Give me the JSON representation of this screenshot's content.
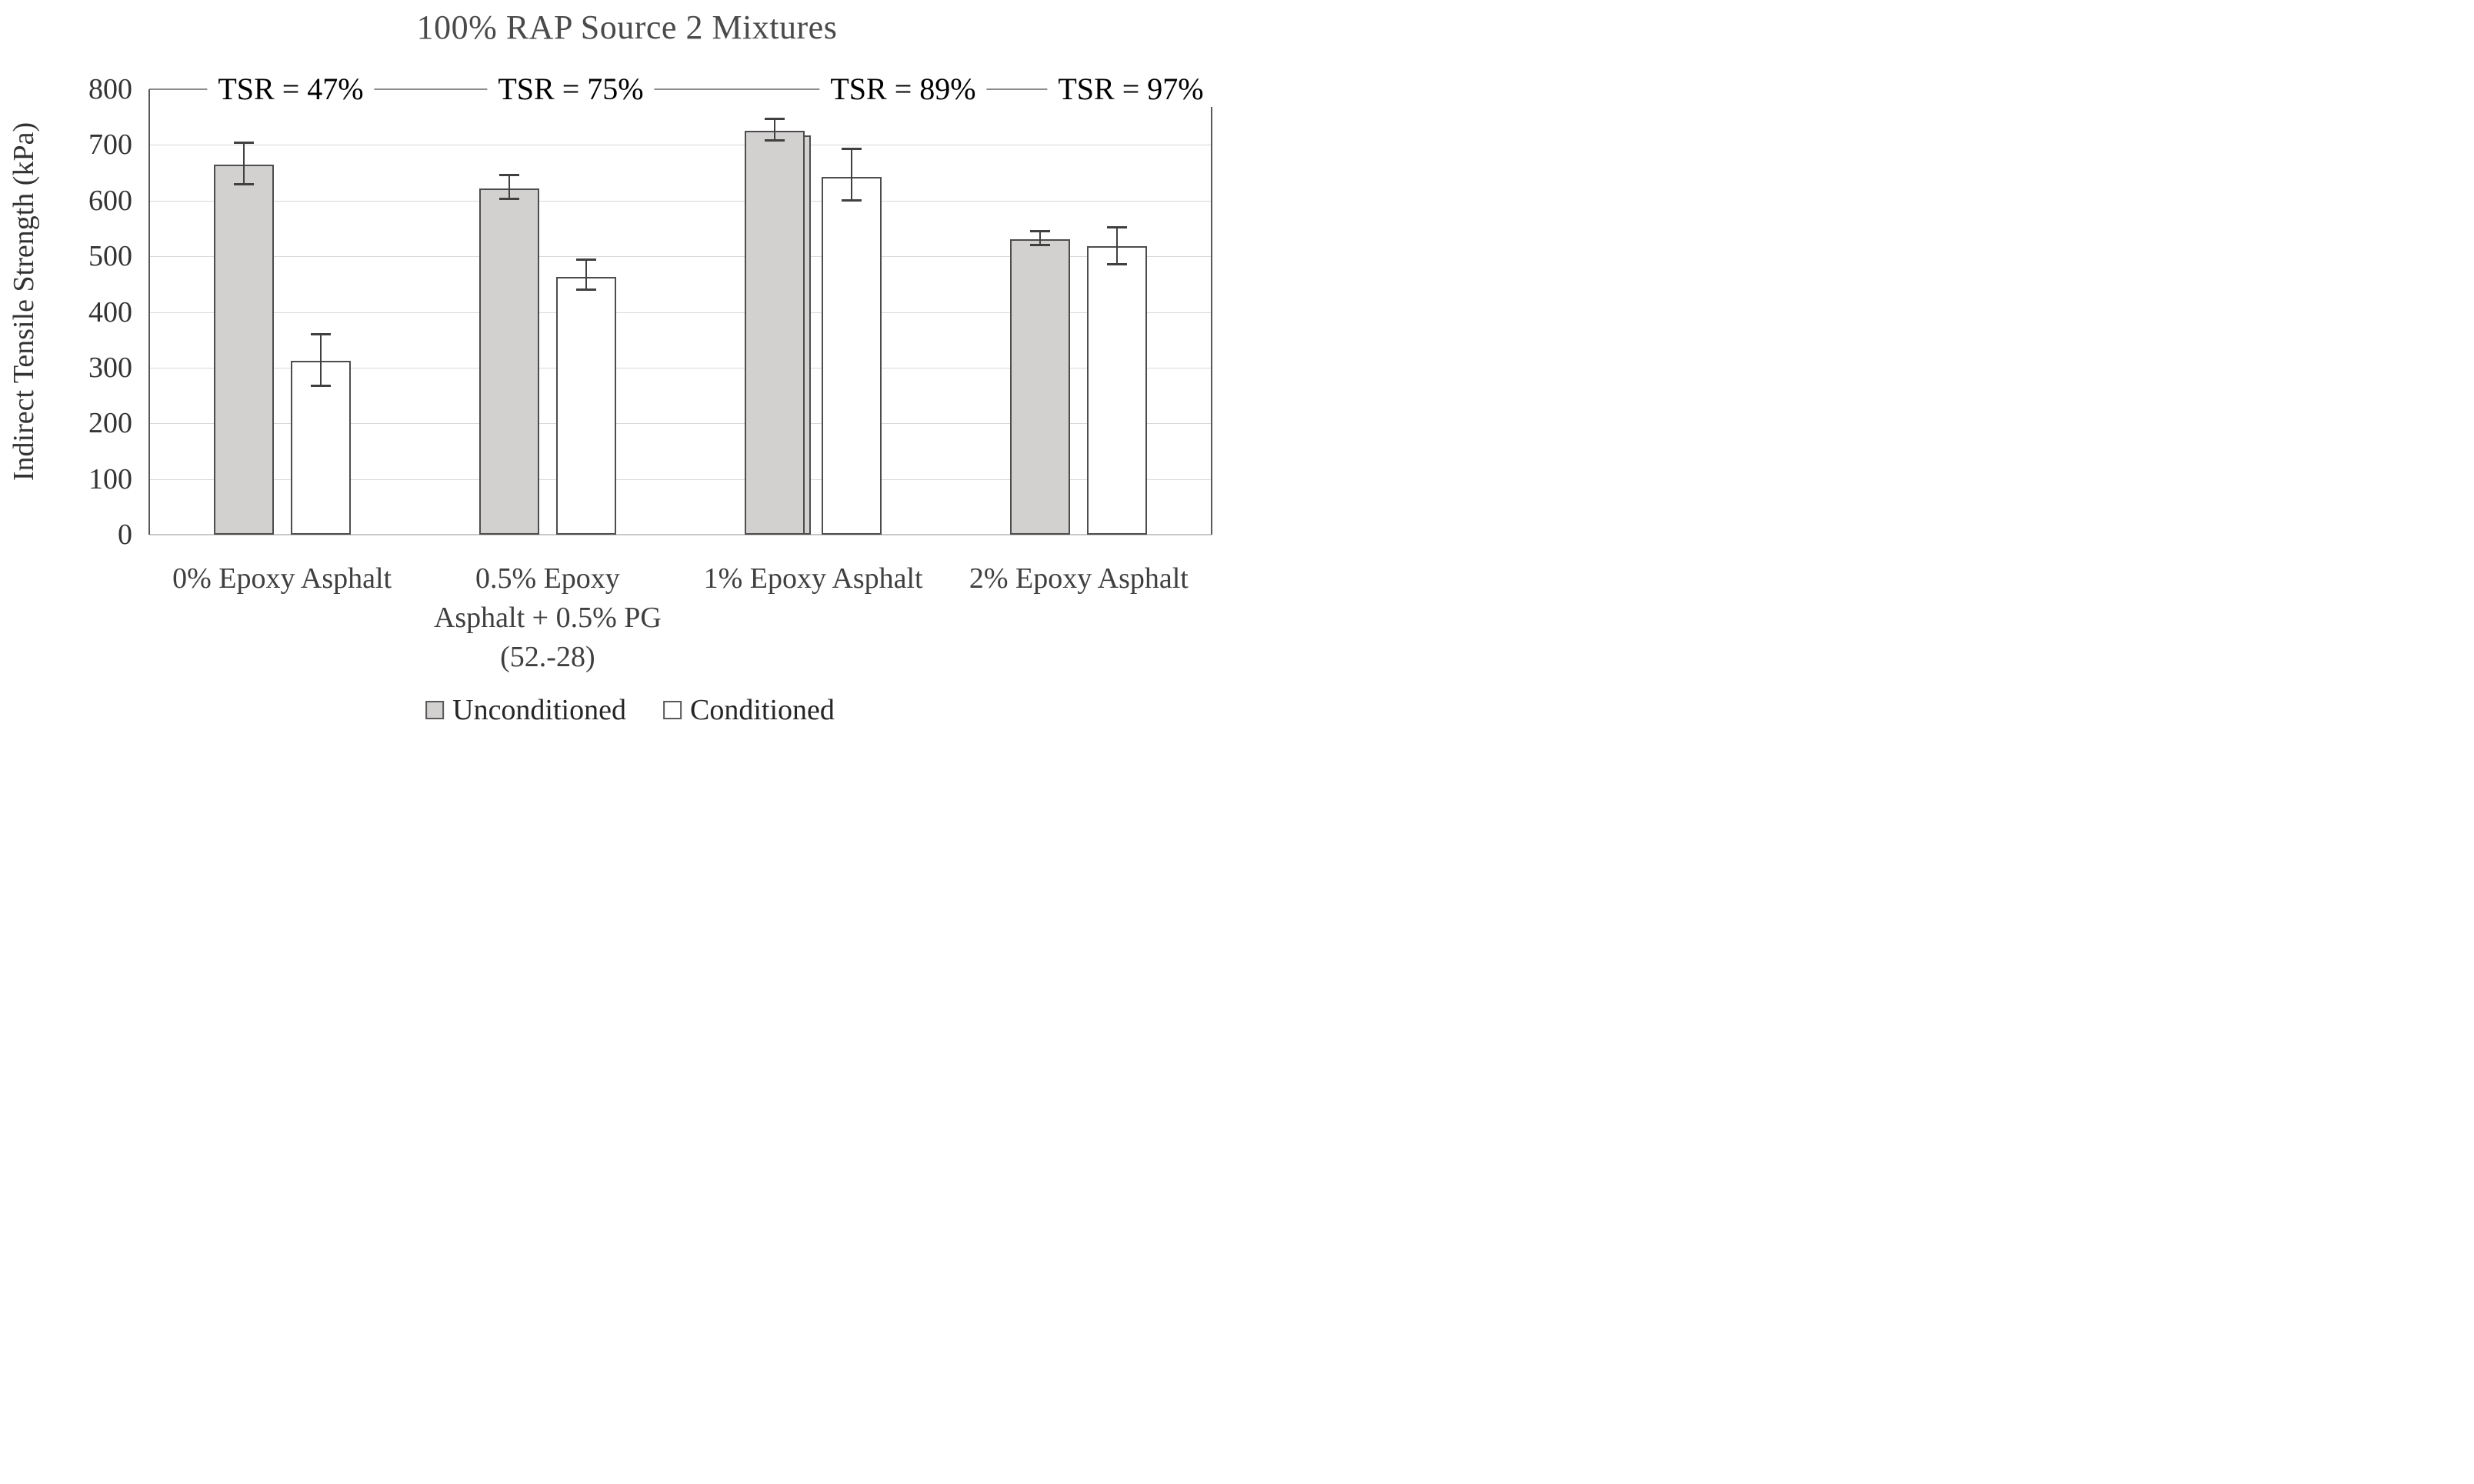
{
  "title": "100% RAP Source 2 Mixtures",
  "y_axis": {
    "label": "Indirect Tensile Strength (kPa)",
    "ticks": [
      800,
      700,
      600,
      500,
      400,
      300,
      200,
      100,
      0
    ],
    "min": 0,
    "max": 800
  },
  "legend": {
    "position": "bottom",
    "items": [
      {
        "label": "Unconditioned",
        "swatch": "gray-filled-square"
      },
      {
        "label": "Conditioned",
        "swatch": "white-open-square"
      }
    ]
  },
  "chart_data": {
    "type": "bar",
    "title": "100% RAP Source 2 Mixtures",
    "xlabel": "",
    "ylabel": "Indirect Tensile Strength (kPa)",
    "ylim": [
      0,
      800
    ],
    "y_tick_step": 100,
    "grid": true,
    "legend_position": "bottom",
    "categories": [
      "0% Epoxy Asphalt",
      "0.5% Epoxy Asphalt + 0.5% PG (52.-28)",
      "1% Epoxy Asphalt",
      "2% Epoxy Asphalt"
    ],
    "category_lines": [
      [
        "0% Epoxy Asphalt"
      ],
      [
        "0.5% Epoxy",
        "Asphalt + 0.5% PG",
        "(52.-28)"
      ],
      [
        "1% Epoxy Asphalt"
      ],
      [
        "2% Epoxy Asphalt"
      ]
    ],
    "series": [
      {
        "name": "Unconditioned",
        "values": [
          665,
          622,
          726,
          531
        ],
        "error_low": [
          628,
          602,
          708,
          519
        ],
        "error_high": [
          705,
          646,
          748,
          546
        ]
      },
      {
        "name": "Conditioned",
        "values": [
          312,
          463,
          643,
          518
        ],
        "error_low": [
          267,
          440,
          600,
          485
        ],
        "error_high": [
          360,
          495,
          693,
          553
        ]
      }
    ],
    "tsr_labels": [
      "TSR = 47%",
      "TSR = 75%",
      "TSR = 89%",
      "TSR = 97%"
    ],
    "overlap_artifact": {
      "group_index": 2,
      "series": "Unconditioned",
      "value": 717
    }
  },
  "colors": {
    "bar_fill_unconditioned": "#d3d0d0",
    "bar_fill_conditioned": "#ffffff",
    "bar_border": "#4d4d4d",
    "error_bar": "#404040",
    "gridline": "#d9d9d9",
    "top_line": "#8c8c8c",
    "axis_line": "#595959",
    "bottom_axis": "#c8c8c8",
    "title_text": "#4a4a4a",
    "tick_text": "#333333",
    "tsr_text": "#000000",
    "category_text": "#3f3f3f",
    "legend_text": "#262626"
  }
}
